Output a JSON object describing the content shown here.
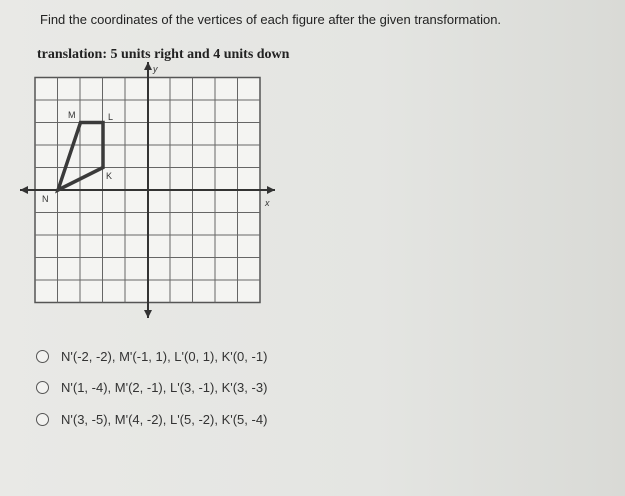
{
  "instruction": "Find the coordinates of the vertices of each figure after the given transformation.",
  "transformation": "translation: 5 units right and 4 units down",
  "grid": {
    "x_label": "x",
    "y_label": "y",
    "vertices": [
      "M",
      "L",
      "K",
      "N"
    ]
  },
  "options": [
    "N'(-2, -2), M'(-1, 1), L'(0, 1), K'(0, -1)",
    "N'(1, -4), M'(2, -1), L'(3, -1), K'(3, -3)",
    "N'(3, -5), M'(4, -2), L'(5, -2), K'(5, -4)"
  ]
}
